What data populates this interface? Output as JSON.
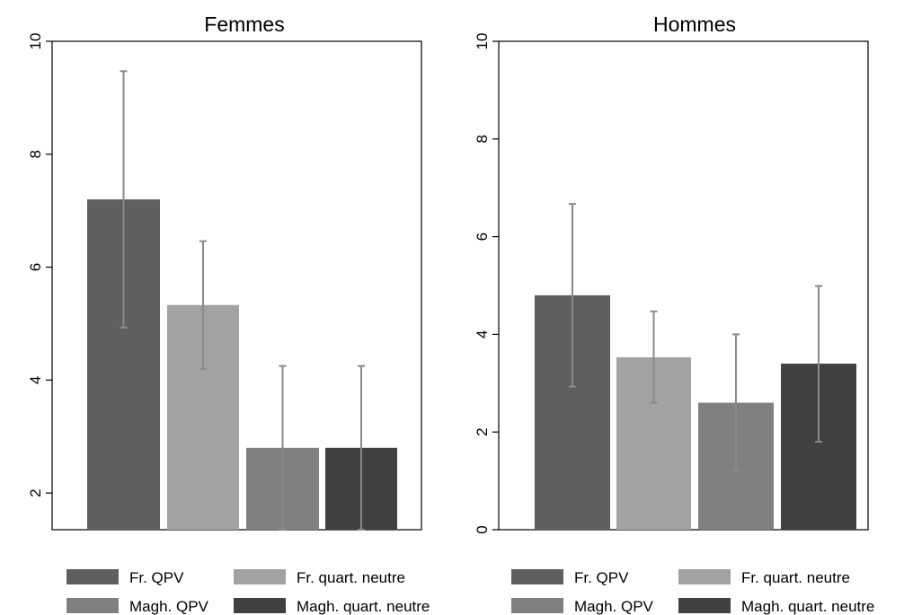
{
  "chart_data": [
    {
      "type": "bar",
      "title": "Femmes",
      "xlabel": "",
      "ylabel": "",
      "ylim": [
        1.35,
        10.0
      ],
      "yticks": [
        2,
        4,
        6,
        8,
        10
      ],
      "grid": false,
      "legend_position": "bottom",
      "series": [
        {
          "name": "Fr. QPV",
          "value": 7.2,
          "ci": [
            4.93,
            9.47
          ],
          "color": "#5f5f5f"
        },
        {
          "name": "Fr. quart. neutre",
          "value": 5.33,
          "ci": [
            4.2,
            6.46
          ],
          "color": "#a2a2a2"
        },
        {
          "name": "Magh. QPV",
          "value": 2.8,
          "ci": [
            1.35,
            4.25
          ],
          "color": "#808080"
        },
        {
          "name": "Magh. quart. neutre",
          "value": 2.8,
          "ci": [
            1.35,
            4.25
          ],
          "color": "#404040"
        }
      ]
    },
    {
      "type": "bar",
      "title": "Hommes",
      "xlabel": "",
      "ylabel": "",
      "ylim": [
        0,
        10.0
      ],
      "yticks": [
        0,
        2,
        4,
        6,
        8,
        10
      ],
      "grid": false,
      "legend_position": "bottom",
      "series": [
        {
          "name": "Fr. QPV",
          "value": 4.8,
          "ci": [
            2.93,
            6.67
          ],
          "color": "#5f5f5f"
        },
        {
          "name": "Fr. quart. neutre",
          "value": 3.53,
          "ci": [
            2.6,
            4.47
          ],
          "color": "#a2a2a2"
        },
        {
          "name": "Magh. QPV",
          "value": 2.6,
          "ci": [
            1.2,
            4.0
          ],
          "color": "#808080"
        },
        {
          "name": "Magh. quart. neutre",
          "value": 3.4,
          "ci": [
            1.8,
            4.99
          ],
          "color": "#404040"
        }
      ]
    }
  ]
}
